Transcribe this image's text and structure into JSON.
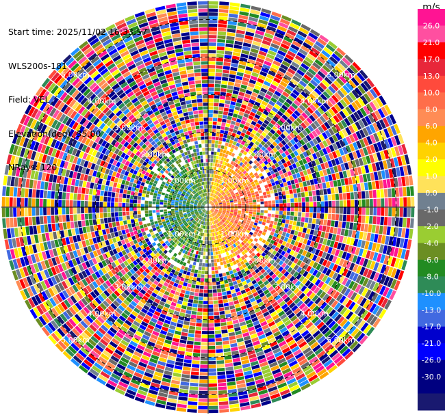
{
  "header": {
    "start_time": "Start time: 2025/11/02 16:33:57",
    "instrument": "WLS200s-181",
    "field": "Field: VEL",
    "elevation": "Elevation(deg): 35.00",
    "nrays": "NRays: 120"
  },
  "colorbar": {
    "unit": "m/s",
    "labels": [
      "26.0",
      "21.0",
      "17.0",
      "13.0",
      "10.0",
      "8.0",
      "6.0",
      "4.0",
      "2.0",
      "1.0",
      "0.0",
      "-1.0",
      "-2.0",
      "-4.0",
      "-6.0",
      "-8.0",
      "-10.0",
      "-13.0",
      "-17.0",
      "-21.0",
      "-26.0",
      "-30.0"
    ],
    "colors": [
      "#ff1493",
      "#ff4fa0",
      "#ff0000",
      "#e8273a",
      "#ff4a3c",
      "#ff6e4a",
      "#ff8c55",
      "#ffa500",
      "#ffd200",
      "#ffff00",
      "#ffe25a",
      "#708090",
      "#696969",
      "#9acd32",
      "#6b8e23",
      "#228b22",
      "#2e8b57",
      "#1e90ff",
      "#4169e1",
      "#0000cd",
      "#0000ff",
      "#00008b",
      "#000080",
      "#191970"
    ]
  },
  "chart_data": {
    "type": "ppi",
    "field": "VEL",
    "units": "m/s",
    "elevation_deg": 35.0,
    "n_rays": 120,
    "max_range_km": 5.5,
    "range_ring_labels": [
      "1.00km",
      "2.00km",
      "3.00km",
      "4.00km",
      "5.00km"
    ],
    "range_rings_km": [
      1,
      2,
      3,
      4,
      5
    ],
    "colorscale_boundaries": [
      30,
      26,
      21,
      17,
      13,
      10,
      8,
      6,
      4,
      2,
      1,
      0,
      -1,
      -2,
      -4,
      -6,
      -8,
      -10,
      -13,
      -17,
      -21,
      -26,
      -30
    ],
    "valid_signal_range_km": 1.8,
    "near_field_pattern": "positive (warm) velocities on east side, negative (cool) velocities on west side",
    "far_field": "noise"
  }
}
